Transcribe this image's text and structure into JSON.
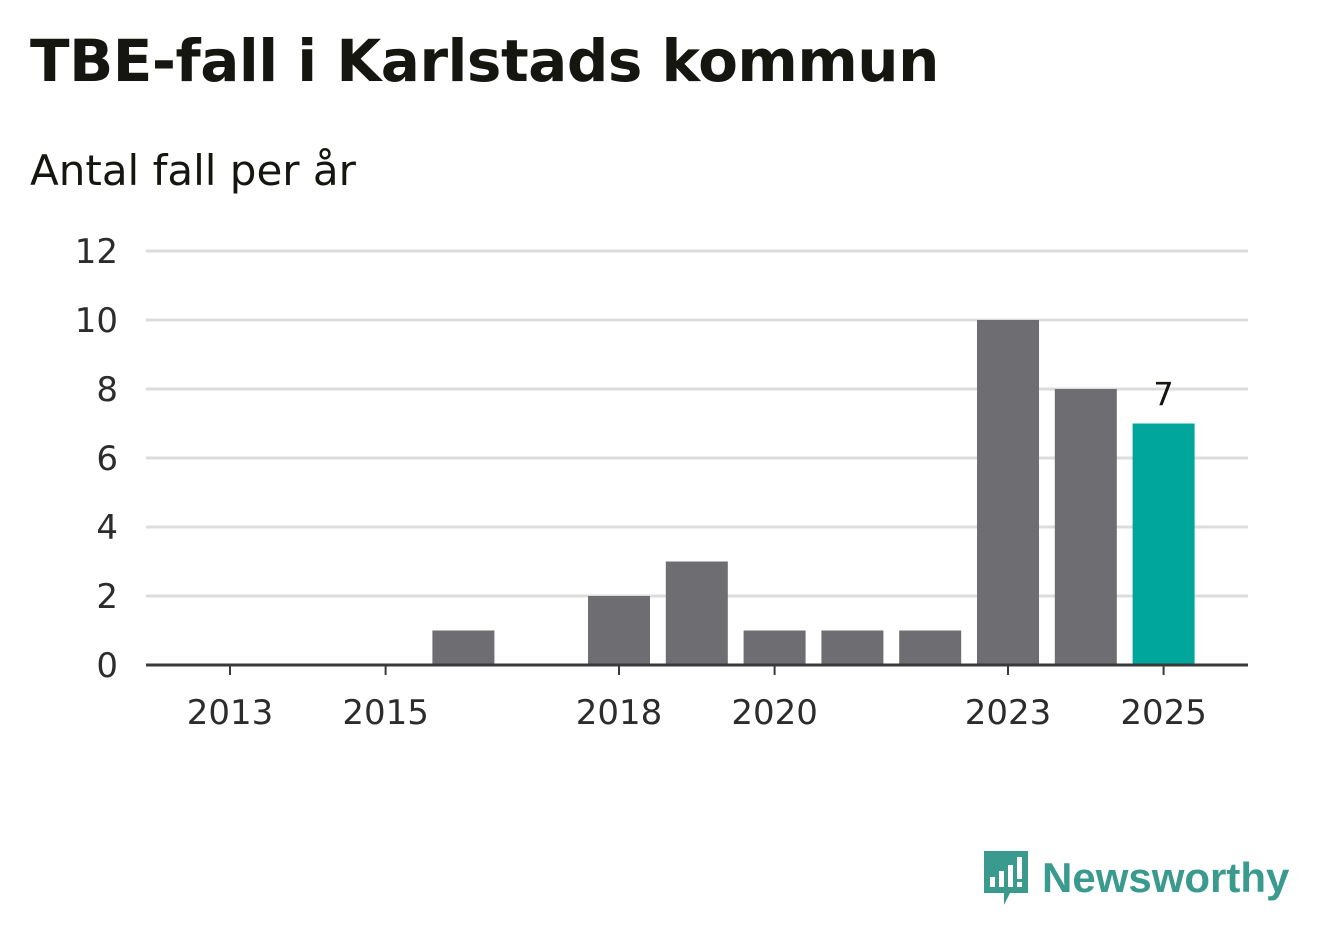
{
  "header": {
    "title": "TBE-fall i Karlstads kommun",
    "subtitle": "Antal fall per år"
  },
  "brand": {
    "name": "Newsworthy",
    "icon": "newsworthy-logo-icon"
  },
  "colors": {
    "bar": "#6e6d72",
    "highlight": "#00a69c",
    "grid": "#dcdcdc",
    "axis": "#3a3a3a",
    "brand": "#3a9a8d"
  },
  "chart_data": {
    "type": "bar",
    "title": "TBE-fall i Karlstads kommun",
    "subtitle": "Antal fall per år",
    "xlabel": "",
    "ylabel": "",
    "categories": [
      "2013",
      "2014",
      "2015",
      "2016",
      "2017",
      "2018",
      "2019",
      "2020",
      "2021",
      "2022",
      "2023",
      "2024",
      "2025"
    ],
    "values": [
      0,
      0,
      0,
      1,
      0,
      2,
      3,
      1,
      1,
      1,
      10,
      8,
      7
    ],
    "ylim": [
      0,
      12
    ],
    "yticks": [
      0,
      2,
      4,
      6,
      8,
      10,
      12
    ],
    "xtick_labels": [
      "2013",
      "2015",
      "2018",
      "2020",
      "2023",
      "2025"
    ],
    "highlight_category": "2025",
    "data_labels": [
      {
        "category": "2025",
        "text": "7"
      }
    ],
    "grid": true
  }
}
